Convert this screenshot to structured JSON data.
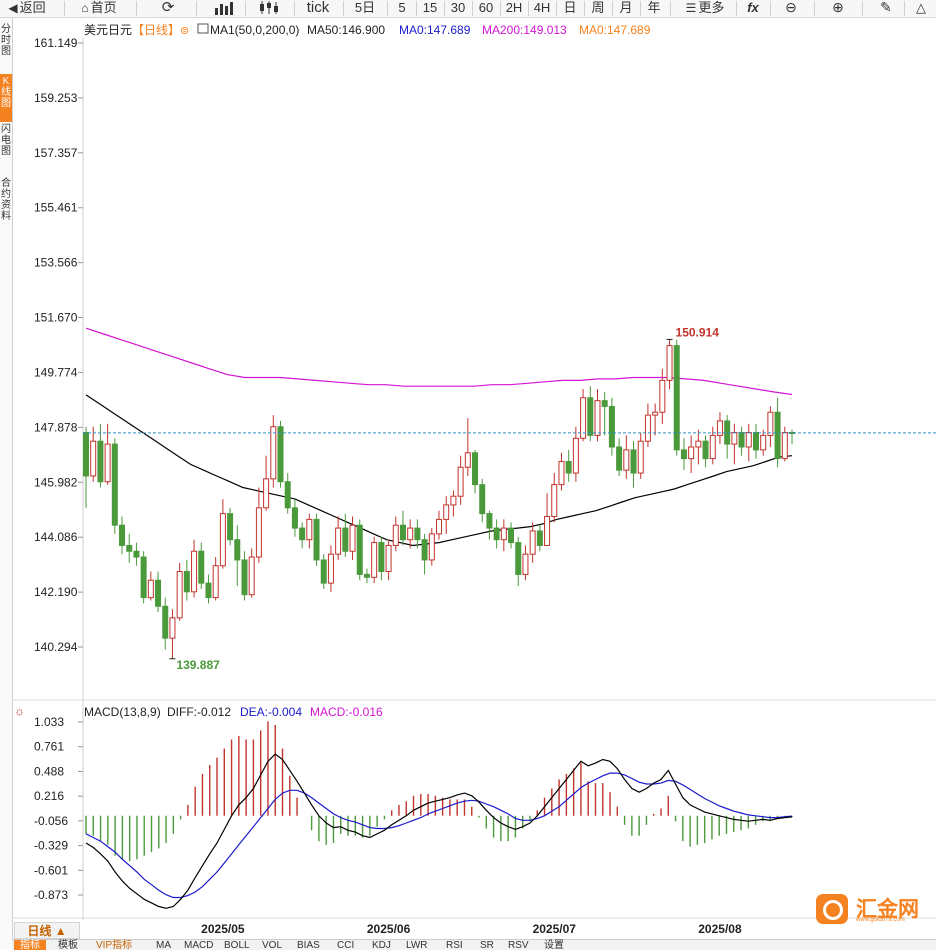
{
  "toolbar": {
    "back": "返回",
    "home": "首页",
    "refresh_icon": "refresh-icon",
    "chart_icon": "bar-chart-icon",
    "candle_icon": "candlestick-icon",
    "tick": "tick",
    "periods": [
      "5日",
      "5",
      "15",
      "30",
      "60",
      "2H",
      "4H",
      "日",
      "周",
      "月",
      "年"
    ],
    "more": "更多",
    "fx": "fx",
    "zoom_out_icon": "zoom-out-icon",
    "zoom_in_icon": "zoom-in-icon",
    "draw_icon": "pencil-icon",
    "triangle_icon": "triangle-icon"
  },
  "sidebar": {
    "tabs": [
      "分时图",
      "K线图",
      "闪电图",
      "合约资料"
    ]
  },
  "main_header": {
    "symbol": "美元日元",
    "period": "【日线】",
    "ma_label": "MA1(50,0,200,0)",
    "ma50": "MA50:146.900",
    "ma0a": "MA0:147.689",
    "ma200": "MA200:149.013",
    "ma0b": "MA0:147.689"
  },
  "macd_header": {
    "label": "MACD(13,8,9)",
    "diff": "DIFF:-0.012",
    "dea": "DEA:-0.004",
    "macd": "MACD:-0.016"
  },
  "bottom": {
    "day_button": "日线 ▲",
    "tabs": [
      "指标",
      "模板",
      "VIP指标",
      "MA",
      "MACD",
      "BOLL",
      "VOL",
      "BIAS",
      "CCI",
      "KDJ",
      "LWR",
      "RSI",
      "SR",
      "RSV",
      "设置"
    ]
  },
  "logo": {
    "text": "汇金网",
    "sub": "www.gold678.com"
  },
  "colors": {
    "up": "#c2332b",
    "down": "#4a9a3c",
    "ma50": "#000000",
    "ma200": "#d414d4",
    "dea": "#1a1acc",
    "last_price": "#2f8fc8",
    "accent": "#f58220"
  },
  "chart_data": [
    {
      "type": "candlestick",
      "y_ticks": [
        "161.149",
        "159.253",
        "157.357",
        "155.461",
        "153.566",
        "151.670",
        "149.774",
        "147.878",
        "145.982",
        "144.086",
        "142.190",
        "140.294"
      ],
      "ylim": [
        139.5,
        161.5
      ],
      "x_labels": [
        "2025/05",
        "2025/06",
        "2025/07",
        "2025/08"
      ],
      "annotations": {
        "high": "150.914",
        "low": "139.887"
      },
      "last_price": 147.689,
      "series": [
        {
          "name": "MA50",
          "values": [
            149.0,
            148.7,
            148.4,
            148.1,
            147.8,
            147.5,
            147.2,
            146.9,
            146.6,
            146.4,
            146.2,
            146.0,
            145.8,
            145.7,
            145.6,
            145.5,
            145.4,
            145.2,
            145.0,
            144.8,
            144.6,
            144.4,
            144.2,
            144.0,
            143.9,
            143.8,
            143.85,
            143.9,
            144.0,
            144.1,
            144.2,
            144.3,
            144.35,
            144.4,
            144.45,
            144.55,
            144.7,
            144.8,
            144.9,
            145.0,
            145.15,
            145.3,
            145.45,
            145.55,
            145.65,
            145.75,
            145.9,
            146.05,
            146.2,
            146.35,
            146.45,
            146.55,
            146.7,
            146.85,
            146.9
          ]
        },
        {
          "name": "MA200",
          "values": [
            151.3,
            151.1,
            150.9,
            150.7,
            150.5,
            150.3,
            150.1,
            149.9,
            149.7,
            149.6,
            149.6,
            149.6,
            149.55,
            149.5,
            149.45,
            149.4,
            149.35,
            149.35,
            149.3,
            149.3,
            149.3,
            149.3,
            149.3,
            149.35,
            149.35,
            149.4,
            149.45,
            149.5,
            149.5,
            149.55,
            149.55,
            149.6,
            149.6,
            149.6,
            149.55,
            149.5,
            149.4,
            149.3,
            149.2,
            149.1,
            149.013
          ]
        }
      ],
      "candles": [
        [
          147.7,
          146.2,
          147.9,
          145.1
        ],
        [
          146.2,
          147.4,
          147.9,
          146.0
        ],
        [
          147.4,
          146.0,
          148.0,
          145.8
        ],
        [
          146.0,
          147.3,
          148.0,
          145.9
        ],
        [
          147.3,
          144.5,
          147.5,
          144.2
        ],
        [
          144.5,
          143.8,
          144.8,
          143.5
        ],
        [
          143.8,
          143.6,
          144.2,
          143.2
        ],
        [
          143.6,
          143.4,
          143.9,
          143.1
        ],
        [
          143.4,
          142.0,
          143.6,
          141.8
        ],
        [
          142.0,
          142.6,
          142.9,
          141.9
        ],
        [
          142.6,
          141.7,
          142.9,
          141.5
        ],
        [
          141.7,
          140.6,
          142.0,
          140.2
        ],
        [
          140.6,
          141.3,
          141.6,
          139.887
        ],
        [
          141.3,
          142.9,
          143.2,
          141.2
        ],
        [
          142.9,
          142.2,
          143.3,
          141.9
        ],
        [
          142.2,
          143.6,
          144.0,
          142.0
        ],
        [
          143.6,
          142.5,
          143.9,
          142.3
        ],
        [
          142.5,
          142.0,
          142.8,
          141.8
        ],
        [
          142.0,
          143.1,
          143.4,
          141.9
        ],
        [
          143.1,
          144.9,
          145.4,
          143.0
        ],
        [
          144.9,
          144.0,
          145.1,
          143.8
        ],
        [
          144.0,
          143.3,
          144.5,
          142.4
        ],
        [
          143.3,
          142.1,
          143.6,
          141.9
        ],
        [
          142.1,
          143.4,
          143.7,
          142.0
        ],
        [
          143.4,
          145.1,
          145.8,
          143.2
        ],
        [
          145.1,
          146.1,
          146.9,
          145.0
        ],
        [
          146.1,
          147.9,
          148.3,
          145.8
        ],
        [
          147.9,
          146.0,
          148.1,
          145.8
        ],
        [
          146.0,
          145.1,
          146.3,
          144.9
        ],
        [
          145.1,
          144.4,
          145.4,
          144.1
        ],
        [
          144.4,
          144.0,
          144.6,
          143.7
        ],
        [
          144.0,
          144.7,
          144.9,
          143.7
        ],
        [
          144.7,
          143.3,
          144.9,
          143.1
        ],
        [
          143.3,
          142.5,
          143.5,
          142.3
        ],
        [
          142.5,
          143.5,
          143.8,
          142.2
        ],
        [
          143.5,
          144.4,
          144.8,
          143.3
        ],
        [
          144.4,
          143.6,
          144.9,
          143.4
        ],
        [
          143.6,
          144.5,
          144.8,
          143.3
        ],
        [
          144.5,
          142.8,
          144.7,
          142.6
        ],
        [
          142.8,
          142.7,
          143.0,
          142.5
        ],
        [
          142.7,
          143.9,
          144.1,
          142.5
        ],
        [
          143.9,
          142.9,
          144.1,
          142.6
        ],
        [
          142.9,
          143.8,
          144.0,
          142.6
        ],
        [
          143.8,
          144.5,
          144.8,
          143.6
        ],
        [
          144.5,
          144.0,
          145.0,
          143.8
        ],
        [
          144.0,
          144.4,
          144.7,
          143.7
        ],
        [
          144.4,
          144.0,
          144.7,
          143.7
        ],
        [
          144.0,
          143.3,
          144.2,
          142.8
        ],
        [
          143.3,
          144.2,
          144.4,
          143.1
        ],
        [
          144.2,
          144.7,
          145.0,
          144.0
        ],
        [
          144.7,
          145.2,
          145.5,
          144.2
        ],
        [
          145.2,
          145.5,
          145.7,
          144.8
        ],
        [
          145.5,
          146.5,
          146.9,
          145.2
        ],
        [
          146.5,
          147.0,
          148.2,
          146.2
        ],
        [
          147.0,
          145.9,
          147.1,
          145.6
        ],
        [
          145.9,
          144.9,
          146.1,
          144.6
        ],
        [
          144.9,
          144.4,
          145.0,
          144.0
        ],
        [
          144.4,
          144.0,
          144.7,
          143.7
        ],
        [
          144.0,
          144.4,
          144.7,
          143.6
        ],
        [
          144.4,
          143.9,
          144.6,
          143.7
        ],
        [
          143.9,
          142.8,
          144.1,
          142.4
        ],
        [
          142.8,
          143.5,
          143.8,
          142.6
        ],
        [
          143.5,
          144.3,
          144.6,
          143.2
        ],
        [
          144.3,
          143.8,
          144.5,
          143.6
        ],
        [
          143.8,
          144.8,
          145.6,
          143.8
        ],
        [
          144.8,
          145.9,
          146.3,
          144.6
        ],
        [
          145.9,
          146.7,
          147.0,
          145.7
        ],
        [
          146.7,
          146.3,
          147.1,
          146.0
        ],
        [
          146.3,
          147.5,
          147.9,
          146.0
        ],
        [
          147.5,
          148.9,
          149.2,
          147.4
        ],
        [
          148.9,
          147.6,
          149.3,
          147.4
        ],
        [
          147.6,
          148.8,
          149.2,
          147.4
        ],
        [
          148.8,
          148.6,
          149.1,
          147.6
        ],
        [
          148.6,
          147.2,
          148.9,
          146.9
        ],
        [
          147.2,
          146.4,
          147.5,
          146.2
        ],
        [
          146.4,
          147.1,
          147.6,
          146.1
        ],
        [
          147.1,
          146.3,
          147.4,
          145.8
        ],
        [
          146.3,
          147.4,
          147.7,
          146.1
        ],
        [
          147.4,
          148.3,
          148.7,
          147.2
        ],
        [
          148.3,
          148.4,
          148.7,
          147.6
        ],
        [
          148.4,
          149.5,
          149.9,
          148.0
        ],
        [
          149.5,
          150.7,
          150.914,
          149.2
        ],
        [
          150.7,
          147.1,
          150.9,
          146.9
        ],
        [
          147.1,
          146.8,
          147.5,
          146.4
        ],
        [
          146.8,
          147.2,
          147.6,
          146.3
        ],
        [
          147.2,
          147.4,
          147.8,
          146.6
        ],
        [
          147.4,
          146.8,
          147.6,
          146.5
        ],
        [
          146.8,
          147.6,
          147.9,
          146.6
        ],
        [
          147.6,
          148.1,
          148.4,
          147.3
        ],
        [
          148.1,
          147.3,
          148.3,
          146.8
        ],
        [
          147.3,
          147.7,
          148.0,
          146.6
        ],
        [
          147.7,
          147.2,
          147.9,
          146.9
        ],
        [
          147.2,
          147.7,
          148.0,
          146.7
        ],
        [
          147.7,
          147.1,
          148.0,
          146.8
        ],
        [
          147.1,
          147.6,
          147.8,
          146.9
        ],
        [
          147.6,
          148.4,
          148.6,
          147.2
        ],
        [
          148.4,
          146.8,
          148.9,
          146.5
        ],
        [
          146.8,
          147.7,
          147.9,
          146.7
        ],
        [
          147.7,
          147.689,
          147.8,
          147.3
        ]
      ]
    },
    {
      "type": "macd",
      "y_ticks": [
        "1.033",
        "0.761",
        "0.488",
        "0.216",
        "-0.056",
        "-0.329",
        "-0.601",
        "-0.873"
      ],
      "ylim": [
        -1.08,
        1.1
      ],
      "diff": [
        -0.3,
        -0.35,
        -0.42,
        -0.5,
        -0.62,
        -0.72,
        -0.8,
        -0.86,
        -0.92,
        -0.96,
        -1.0,
        -1.02,
        -1.0,
        -0.92,
        -0.82,
        -0.68,
        -0.55,
        -0.42,
        -0.3,
        -0.15,
        0.0,
        0.12,
        0.2,
        0.3,
        0.45,
        0.6,
        0.68,
        0.62,
        0.5,
        0.38,
        0.25,
        0.12,
        0.0,
        -0.08,
        -0.13,
        -0.12,
        -0.16,
        -0.18,
        -0.22,
        -0.24,
        -0.2,
        -0.16,
        -0.1,
        -0.05,
        0.0,
        0.06,
        0.1,
        0.14,
        0.16,
        0.18,
        0.2,
        0.23,
        0.25,
        0.22,
        0.15,
        0.06,
        -0.02,
        -0.08,
        -0.12,
        -0.15,
        -0.12,
        -0.08,
        0.0,
        0.1,
        0.2,
        0.3,
        0.4,
        0.5,
        0.6,
        0.55,
        0.58,
        0.62,
        0.6,
        0.52,
        0.4,
        0.3,
        0.26,
        0.3,
        0.36,
        0.4,
        0.5,
        0.35,
        0.2,
        0.12,
        0.08,
        0.04,
        0.02,
        0.0,
        -0.02,
        -0.04,
        -0.05,
        -0.06,
        -0.05,
        -0.04,
        -0.05,
        -0.03,
        -0.02,
        -0.012
      ],
      "dea": [
        -0.2,
        -0.24,
        -0.28,
        -0.34,
        -0.4,
        -0.48,
        -0.55,
        -0.62,
        -0.7,
        -0.76,
        -0.82,
        -0.87,
        -0.9,
        -0.9,
        -0.88,
        -0.84,
        -0.78,
        -0.7,
        -0.62,
        -0.52,
        -0.42,
        -0.32,
        -0.22,
        -0.12,
        -0.02,
        0.08,
        0.18,
        0.25,
        0.28,
        0.28,
        0.25,
        0.2,
        0.14,
        0.08,
        0.02,
        -0.02,
        -0.05,
        -0.07,
        -0.1,
        -0.13,
        -0.14,
        -0.14,
        -0.13,
        -0.11,
        -0.08,
        -0.05,
        -0.02,
        0.02,
        0.05,
        0.08,
        0.11,
        0.14,
        0.16,
        0.17,
        0.16,
        0.13,
        0.1,
        0.06,
        0.02,
        -0.03,
        -0.05,
        -0.05,
        -0.03,
        0.0,
        0.05,
        0.1,
        0.17,
        0.24,
        0.31,
        0.36,
        0.4,
        0.44,
        0.47,
        0.47,
        0.45,
        0.41,
        0.37,
        0.35,
        0.35,
        0.36,
        0.39,
        0.38,
        0.34,
        0.29,
        0.24,
        0.19,
        0.15,
        0.11,
        0.08,
        0.05,
        0.03,
        0.01,
        0.0,
        -0.01,
        -0.02,
        -0.02,
        -0.01,
        -0.004
      ]
    }
  ]
}
